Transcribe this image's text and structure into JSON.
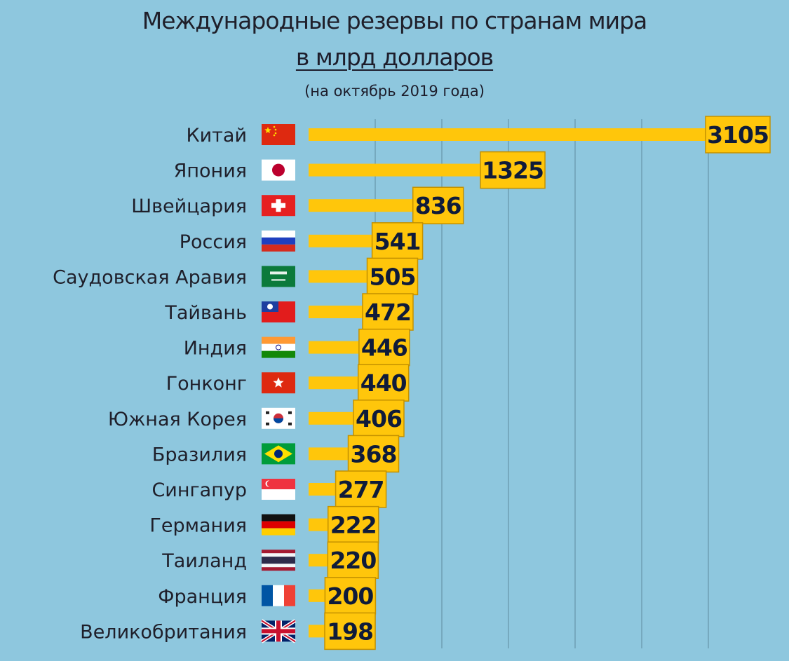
{
  "header": {
    "title": "Международные резервы по странам мира",
    "subtitle": "в млрд долларов",
    "date_note": "(на октябрь 2019 года)"
  },
  "colors": {
    "background": "#8ec7de",
    "bar": "#ffc60b",
    "gridline": "#6f9fb3",
    "value_text": "#0f1b3a"
  },
  "chart_data": {
    "type": "bar",
    "orientation": "horizontal",
    "title": "Международные резервы по странам мира",
    "subtitle": "в млрд долларов",
    "categories": [
      "Китай",
      "Япония",
      "Швейцария",
      "Россия",
      "Саудовская Аравия",
      "Тайвань",
      "Индия",
      "Гонконг",
      "Южная Корея",
      "Бразилия",
      "Сингапур",
      "Германия",
      "Таиланд",
      "Франция",
      "Великобритания"
    ],
    "flags": [
      "china-flag",
      "japan-flag",
      "switzerland-flag",
      "russia-flag",
      "saudi-arabia-flag",
      "taiwan-flag",
      "india-flag",
      "hong-kong-flag",
      "south-korea-flag",
      "brazil-flag",
      "singapore-flag",
      "germany-flag",
      "thailand-flag",
      "france-flag",
      "uk-flag"
    ],
    "values": [
      3105,
      1325,
      836,
      541,
      505,
      472,
      446,
      440,
      406,
      368,
      277,
      222,
      220,
      200,
      198
    ],
    "value_labels": [
      "3105",
      "1325",
      "836",
      "541",
      "505",
      "472",
      "446",
      "440",
      "406",
      "368",
      "277",
      "222",
      "220",
      "200",
      "198"
    ],
    "xlim": [
      0,
      3350
    ],
    "grid": true,
    "legend": "none"
  }
}
